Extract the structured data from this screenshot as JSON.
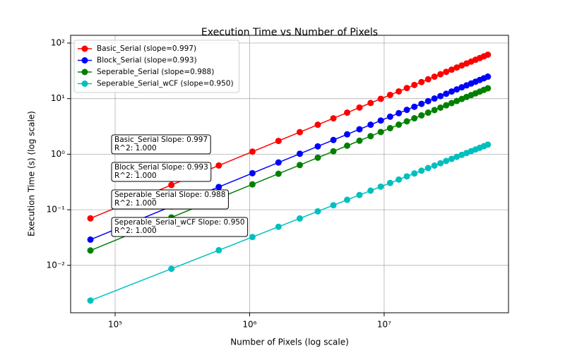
{
  "chart_data": {
    "type": "line",
    "title": "Execution Time vs Number of Pixels",
    "x_label": "Number of Pixels (log scale)",
    "y_label": "Execution Time (s) (log scale)",
    "x_scale": "log",
    "y_scale": "log",
    "grid": true,
    "legend": "upper left",
    "x": [
      65536,
      262144,
      589824,
      1048576,
      1638400,
      2359296,
      3211264,
      4194304,
      5308416,
      6553600,
      7929856,
      9437184,
      11075584,
      12845056,
      14745600,
      16777216,
      18939904,
      21233664,
      23658496,
      26214400,
      28901376,
      31719424,
      34668544,
      37748736,
      40960000,
      44302336,
      47775744,
      51380224,
      55115776,
      58982400
    ],
    "series": [
      {
        "name": "Basic_Serial (slope=0.997)",
        "color": "#ff0000",
        "values": [
          0.07,
          0.279,
          0.626,
          1.111,
          1.733,
          2.493,
          3.39,
          4.424,
          5.596,
          6.904,
          8.349,
          9.93,
          11.65,
          13.5,
          15.5,
          17.63,
          19.89,
          22.3,
          24.83,
          27.5,
          30.31,
          33.26,
          36.34,
          39.56,
          42.92,
          46.41,
          50.04,
          53.8,
          57.7,
          61.74
        ]
      },
      {
        "name": "Block_Serial (slope=0.993)",
        "color": "#0000ff",
        "values": [
          0.029,
          0.1149,
          0.257,
          0.455,
          0.709,
          1.018,
          1.383,
          1.803,
          2.278,
          2.808,
          3.393,
          4.033,
          4.728,
          5.477,
          6.283,
          7.142,
          8.054,
          9.025,
          10.05,
          11.12,
          12.25,
          13.44,
          14.68,
          15.98,
          17.33,
          18.73,
          20.19,
          21.7,
          23.27,
          24.89
        ]
      },
      {
        "name": "Seperable_Serial (slope=0.988)",
        "color": "#008000",
        "values": [
          0.0185,
          0.0728,
          0.1622,
          0.2863,
          0.445,
          0.638,
          0.865,
          1.126,
          1.422,
          1.751,
          2.113,
          2.51,
          2.94,
          3.403,
          3.901,
          4.431,
          4.995,
          5.594,
          6.223,
          6.887,
          7.584,
          8.314,
          9.078,
          9.875,
          10.71,
          11.57,
          12.46,
          13.39,
          14.35,
          15.35
        ]
      },
      {
        "name": "Seperable_Serial_wCF (slope=0.950)",
        "color": "#00bfbf",
        "values": [
          0.00232,
          0.00866,
          0.01871,
          0.03232,
          0.04938,
          0.0698,
          0.0936,
          0.1206,
          0.1509,
          0.1843,
          0.2209,
          0.2606,
          0.3034,
          0.3492,
          0.3983,
          0.4502,
          0.505,
          0.5631,
          0.6239,
          0.6879,
          0.7546,
          0.8243,
          0.897,
          0.9726,
          1.051,
          1.132,
          1.217,
          1.304,
          1.394,
          1.486
        ]
      }
    ],
    "annotations": [
      {
        "lines": [
          "Basic_Serial Slope: 0.997",
          "R^2: 1.000"
        ]
      },
      {
        "lines": [
          "Block_Serial Slope: 0.993",
          "R^2: 1.000"
        ]
      },
      {
        "lines": [
          "Seperable_Serial Slope: 0.988",
          "R^2: 1.000"
        ]
      },
      {
        "lines": [
          "Seperable_Serial_wCF Slope: 0.950",
          "R^2: 1.000"
        ]
      }
    ],
    "xlim": [
      46700,
      84000000
    ],
    "ylim": [
      0.0014,
      138
    ],
    "xticks": [
      {
        "value": 100000,
        "label": "10⁵"
      },
      {
        "value": 1000000,
        "label": "10⁶"
      },
      {
        "value": 10000000,
        "label": "10⁷"
      }
    ],
    "yticks": [
      {
        "value": 0.01,
        "label": "10⁻²"
      },
      {
        "value": 0.1,
        "label": "10⁻¹"
      },
      {
        "value": 1,
        "label": "10⁰"
      },
      {
        "value": 10,
        "label": "10¹"
      },
      {
        "value": 100,
        "label": "10²"
      }
    ]
  }
}
